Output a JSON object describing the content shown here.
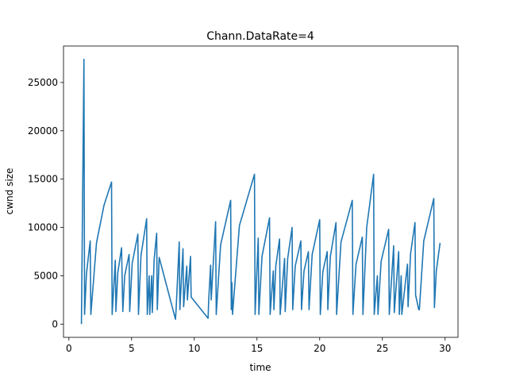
{
  "chart_data": {
    "type": "line",
    "title": "Chann.DataRate=4",
    "x_label": "time",
    "y_label": "cwnd size",
    "color": "#1f77b4",
    "x": [
      1.0,
      1.2,
      1.25,
      1.4,
      1.7,
      1.75,
      2.2,
      2.8,
      3.4,
      3.45,
      3.7,
      3.75,
      3.9,
      4.2,
      4.3,
      4.45,
      4.8,
      4.85,
      5.05,
      5.5,
      5.55,
      5.75,
      6.2,
      6.25,
      6.4,
      6.45,
      6.6,
      6.65,
      6.8,
      7.0,
      7.05,
      7.2,
      8.5,
      8.55,
      8.8,
      8.85,
      9.1,
      9.15,
      9.4,
      9.45,
      9.7,
      9.75,
      11.1,
      11.15,
      11.3,
      11.35,
      11.7,
      11.75,
      12.1,
      12.9,
      12.95,
      13.0,
      13.05,
      13.6,
      14.8,
      14.85,
      15.1,
      15.15,
      15.4,
      16.0,
      16.05,
      16.3,
      16.35,
      16.5,
      16.8,
      16.85,
      17.2,
      17.25,
      17.45,
      17.8,
      17.85,
      18.05,
      18.5,
      18.55,
      18.75,
      19.1,
      19.15,
      19.4,
      20.0,
      20.05,
      20.25,
      20.6,
      20.65,
      20.85,
      21.3,
      21.35,
      21.7,
      22.6,
      22.65,
      22.9,
      23.4,
      23.45,
      23.75,
      24.3,
      24.35,
      24.6,
      24.65,
      24.9,
      25.5,
      25.55,
      25.9,
      25.95,
      26.3,
      26.35,
      26.5,
      26.55,
      27.0,
      27.05,
      27.25,
      27.6,
      27.65,
      27.9,
      27.95,
      28.3,
      29.1,
      29.15,
      29.3,
      29.6
    ],
    "values": [
      0,
      27400,
      1000,
      5200,
      8600,
      1000,
      8400,
      12300,
      14700,
      1000,
      6600,
      1300,
      5300,
      7900,
      1300,
      5000,
      7200,
      1300,
      6300,
      9300,
      1000,
      7100,
      10900,
      1000,
      5000,
      1000,
      5000,
      1200,
      6700,
      9400,
      1500,
      6900,
      500,
      1500,
      8500,
      1500,
      7800,
      1800,
      6000,
      2500,
      7000,
      2800,
      600,
      2500,
      6100,
      2500,
      10600,
      1000,
      8200,
      12800,
      1500,
      4300,
      1000,
      10200,
      15500,
      1000,
      8900,
      1000,
      7000,
      11000,
      1000,
      5500,
      1500,
      6000,
      8800,
      1000,
      6800,
      1300,
      6800,
      10000,
      1500,
      6000,
      8600,
      1500,
      5500,
      7500,
      1500,
      7200,
      10800,
      1000,
      5400,
      7500,
      1500,
      7000,
      10500,
      1000,
      8500,
      12800,
      1000,
      6200,
      9000,
      1000,
      10000,
      15500,
      1000,
      5000,
      1000,
      6500,
      9800,
      1000,
      8100,
      1200,
      7500,
      1000,
      5000,
      1000,
      6200,
      1800,
      7300,
      10500,
      3000,
      1500,
      1500,
      8600,
      13000,
      1700,
      5500,
      8400
    ],
    "xlim": [
      -0.43,
      31.03
    ],
    "ylim": [
      -1370,
      28770
    ],
    "xticks": [
      0,
      5,
      10,
      15,
      20,
      25,
      30
    ],
    "yticks": [
      0,
      5000,
      10000,
      15000,
      20000,
      25000
    ]
  }
}
